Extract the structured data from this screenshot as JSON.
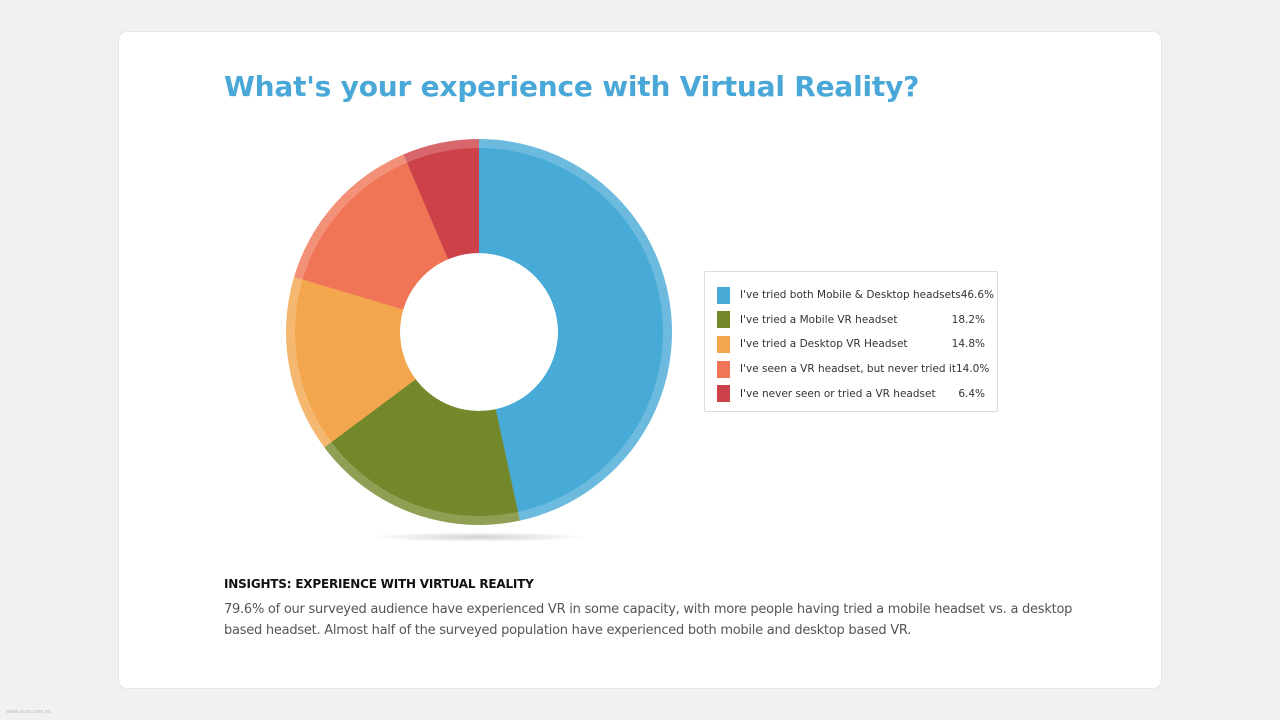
{
  "title": "What's your experience with Virtual Reality?",
  "chart_data": {
    "type": "pie",
    "title": "What's your experience with Virtual Reality?",
    "categories": [
      "I've tried both Mobile & Desktop headsets",
      "I've tried a Mobile VR headset",
      "I've tried a Desktop VR Headset",
      "I've seen a VR headset, but never tried it",
      "I've never seen or tried a VR headset"
    ],
    "values": [
      46.6,
      18.2,
      14.8,
      14.0,
      6.4
    ],
    "value_labels": [
      "46.6%",
      "18.2%",
      "14.8%",
      "14.0%",
      "6.4%"
    ],
    "colors": [
      "#47aad7",
      "#73882b",
      "#f3a64e",
      "#f07456",
      "#cd4149"
    ],
    "donut": true,
    "legend_position": "right"
  },
  "insights": {
    "heading": "INSIGHTS: EXPERIENCE WITH VIRTUAL REALITY",
    "body": "79.6% of our surveyed audience have experienced VR in some capacity, with more people having tried a mobile headset vs. a desktop based headset. Almost half of the surveyed population have experienced both mobile and desktop based VR."
  },
  "watermark": "www.xxxx.com.xx"
}
